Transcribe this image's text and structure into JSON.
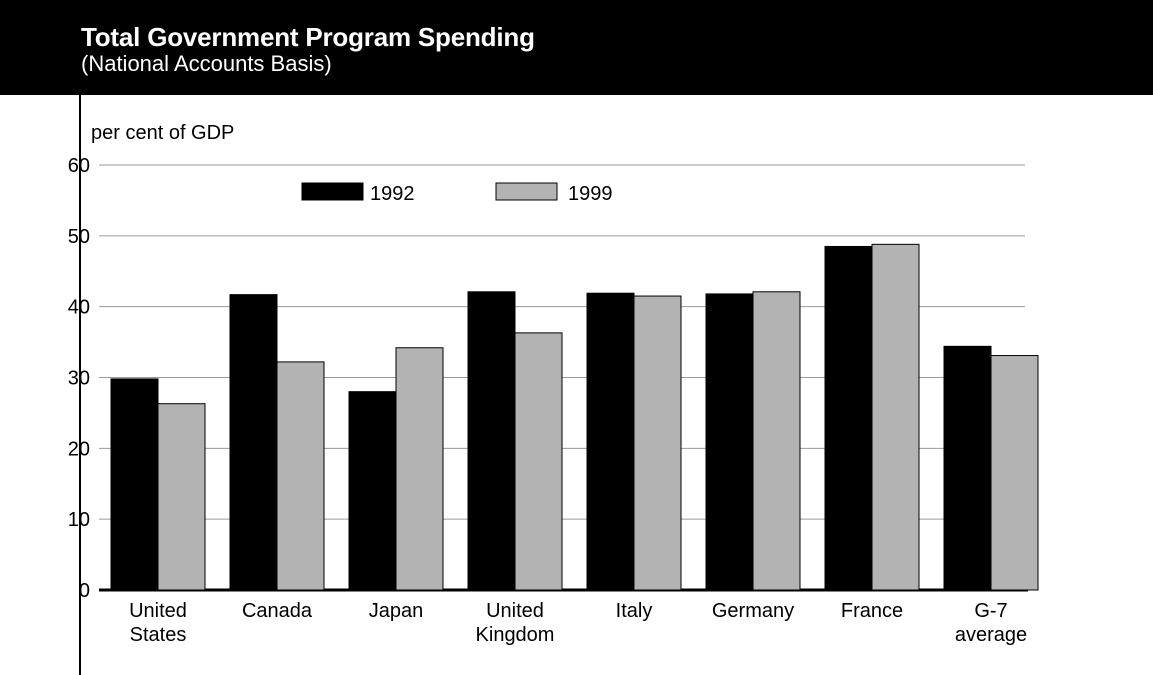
{
  "header": {
    "title": "Total Government Program Spending",
    "subtitle": "(National Accounts Basis)"
  },
  "colors": {
    "header_bg": "#000000",
    "series_1992": "#000000",
    "series_1999": "#b3b3b3",
    "gridline": "#9a9a9a"
  },
  "chart_data": {
    "type": "bar",
    "title": "Total Government Program Spending",
    "subtitle": "(National Accounts Basis)",
    "ylabel": "per cent of GDP",
    "xlabel": "",
    "ylim": [
      0,
      60
    ],
    "yticks": [
      0,
      10,
      20,
      30,
      40,
      50,
      60
    ],
    "grid": true,
    "legend_position": "top-center",
    "categories": [
      [
        "United",
        "States"
      ],
      [
        "Canada"
      ],
      [
        "Japan"
      ],
      [
        "United",
        "Kingdom"
      ],
      [
        "Italy"
      ],
      [
        "Germany"
      ],
      [
        "France"
      ],
      [
        "G-7",
        "average"
      ]
    ],
    "series": [
      {
        "name": "1992",
        "color": "#000000",
        "values": [
          29.8,
          41.7,
          28.0,
          42.1,
          41.9,
          41.8,
          48.5,
          34.4
        ]
      },
      {
        "name": "1999",
        "color": "#b3b3b3",
        "values": [
          26.3,
          32.2,
          34.2,
          36.3,
          41.5,
          42.1,
          48.8,
          33.1
        ]
      }
    ]
  }
}
